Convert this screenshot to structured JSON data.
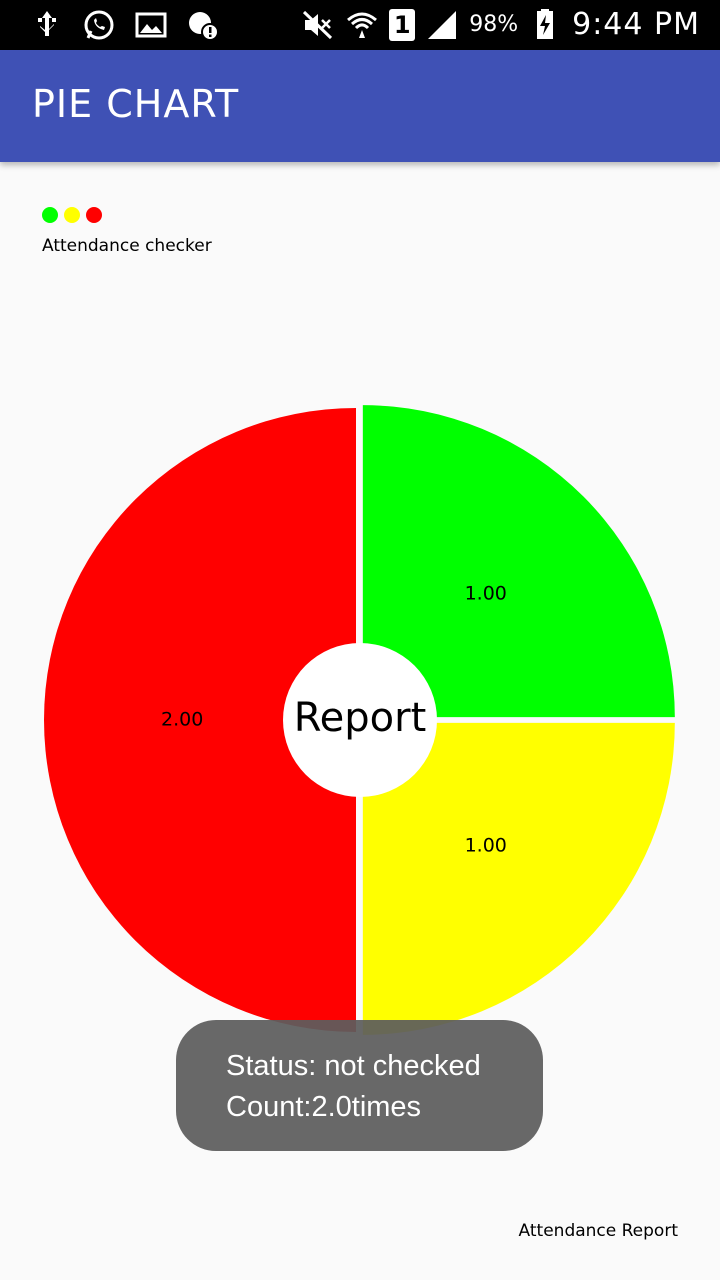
{
  "status_bar": {
    "battery": "98%",
    "time": "9:44 PM",
    "sim": "1",
    "icons": [
      "usb-icon",
      "whatsapp-icon",
      "gallery-icon",
      "sync-alert-icon",
      "mute-icon",
      "wifi-icon",
      "sim-icon",
      "signal-icon",
      "battery-icon"
    ]
  },
  "app_bar": {
    "title": "PIE CHART"
  },
  "legend": {
    "colors": [
      "#00ff00",
      "#ffff00",
      "#ff0000"
    ],
    "description": "Attendance checker"
  },
  "chart_data": {
    "type": "pie",
    "categories": [
      "",
      "",
      ""
    ],
    "values": [
      1.0,
      1.0,
      2.0
    ],
    "value_labels": [
      "1.00",
      "1.00",
      "2.00"
    ],
    "colors": [
      "#00ff00",
      "#ffff00",
      "#ff0000"
    ],
    "center_text": "Report",
    "title": "",
    "description": "Attendance Report",
    "legend": "top-left"
  },
  "toast": {
    "line1": "Status: not checked",
    "line2": "Count:2.0times"
  },
  "footer": {
    "description": "Attendance Report"
  }
}
